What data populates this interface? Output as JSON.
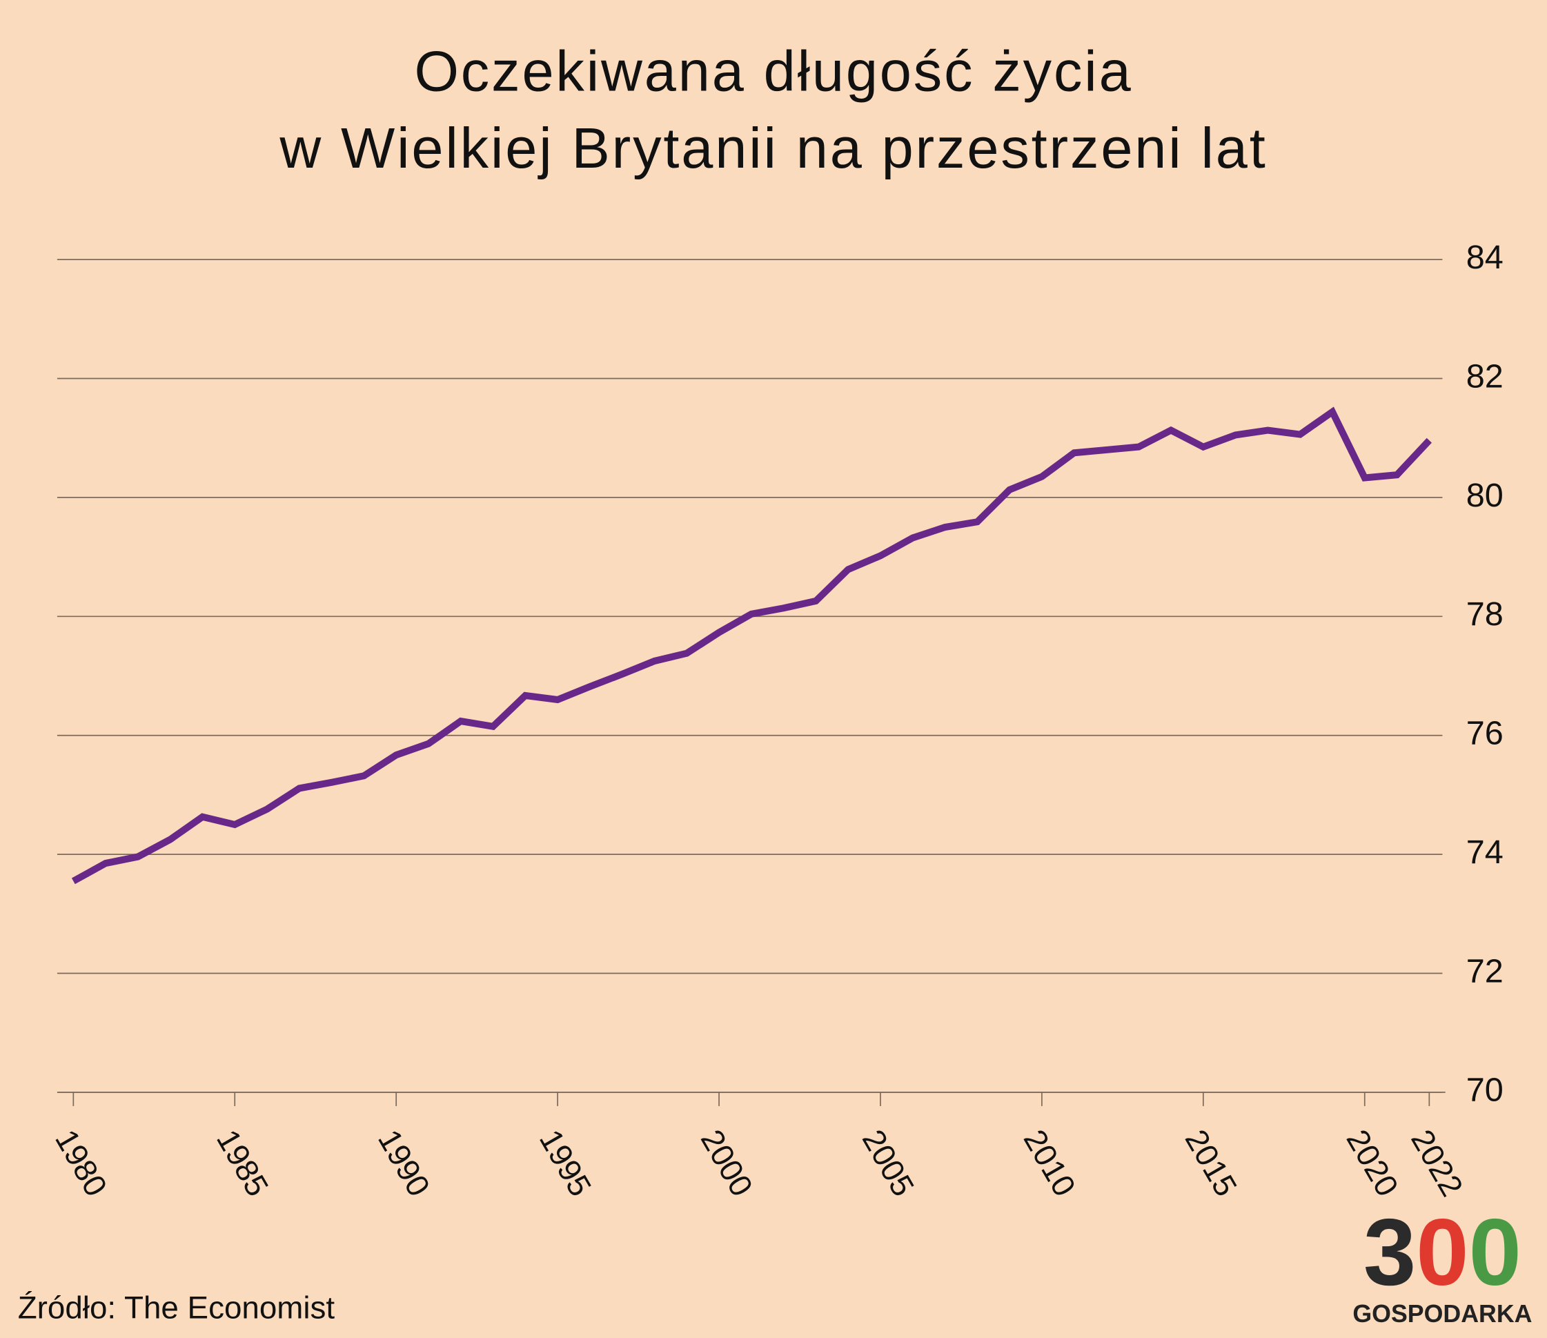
{
  "chart_data": {
    "type": "line",
    "title": [
      "Oczekiwana długość życia",
      "w Wielkiej Brytanii na przestrzeni lat"
    ],
    "x": [
      1980,
      1981,
      1982,
      1983,
      1984,
      1985,
      1986,
      1987,
      1988,
      1989,
      1990,
      1991,
      1992,
      1993,
      1994,
      1995,
      1996,
      1997,
      1998,
      1999,
      2000,
      2001,
      2002,
      2003,
      2004,
      2005,
      2006,
      2007,
      2008,
      2009,
      2010,
      2011,
      2012,
      2013,
      2014,
      2015,
      2016,
      2017,
      2018,
      2019,
      2020,
      2021,
      2022
    ],
    "values": [
      73.55,
      73.85,
      73.96,
      74.25,
      74.63,
      74.5,
      74.76,
      75.11,
      75.21,
      75.32,
      75.67,
      75.86,
      76.24,
      76.15,
      76.67,
      76.6,
      76.82,
      77.03,
      77.25,
      77.38,
      77.73,
      78.04,
      78.14,
      78.26,
      78.79,
      79.02,
      79.32,
      79.5,
      79.59,
      80.13,
      80.35,
      80.75,
      80.8,
      80.85,
      81.13,
      80.85,
      81.05,
      81.13,
      81.06,
      81.44,
      80.33,
      80.38,
      80.96
    ],
    "color": "#68288a",
    "xlim": [
      1979.5,
      2022.5
    ],
    "xticks": [
      1980,
      1985,
      1990,
      1995,
      2000,
      2005,
      2010,
      2015,
      2020,
      2022
    ],
    "ylim": [
      70,
      84
    ],
    "yticks": [
      70,
      72,
      74,
      76,
      78,
      80,
      82,
      84
    ],
    "grid": true,
    "source": "Źródło: The Economist",
    "logo": {
      "text": "300",
      "caption": "GOSPODARKA"
    }
  }
}
